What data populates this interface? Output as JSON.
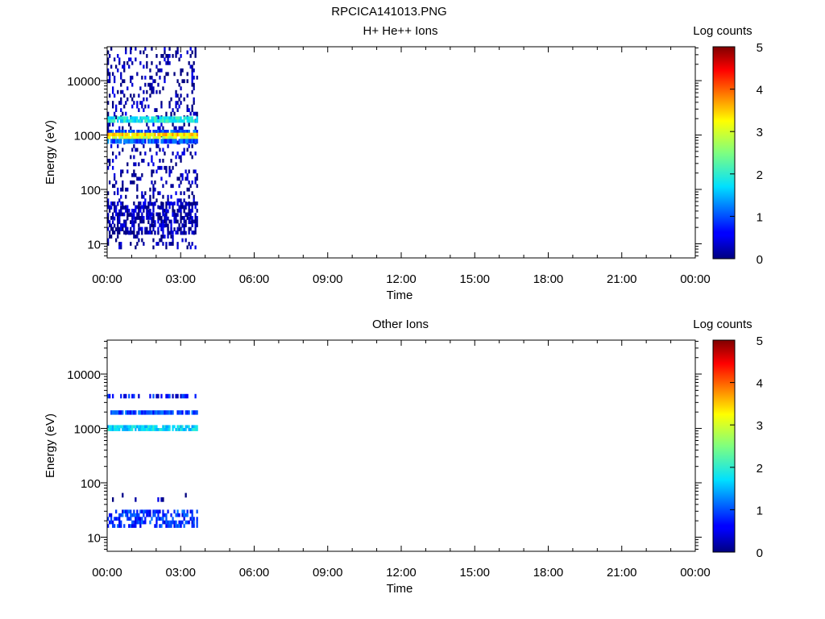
{
  "figure_title": "RPCICA141013.PNG",
  "chart_data": [
    {
      "type": "heatmap",
      "title": "H+ He++ Ions",
      "xlabel": "Time",
      "ylabel": "Energy (eV)",
      "x_ticks": [
        "00:00",
        "03:00",
        "06:00",
        "09:00",
        "12:00",
        "15:00",
        "18:00",
        "21:00",
        "00:00"
      ],
      "x_range_hours": [
        0,
        24
      ],
      "y_scale": "log",
      "y_range": [
        5.5,
        42000
      ],
      "y_ticks": [
        10,
        100,
        1000,
        10000
      ],
      "y_tick_labels": [
        "10",
        "100",
        "1000",
        "10000"
      ],
      "data_time_span_hours": [
        0.0,
        3.7
      ],
      "colorbar": {
        "label": "Log counts",
        "range": [
          0,
          5
        ],
        "ticks": [
          "0",
          "1",
          "2",
          "3",
          "4",
          "5"
        ]
      },
      "bands": [
        {
          "energy_range": [
            8,
            42000
          ],
          "log_counts": 0.1,
          "coverage": 0.2
        },
        {
          "energy_range": [
            15,
            60
          ],
          "log_counts": 0.2,
          "coverage": 0.5
        },
        {
          "energy_range": [
            1700,
            2200
          ],
          "log_counts": 1.9,
          "coverage": 0.9
        },
        {
          "energy_range": [
            1100,
            1250
          ],
          "log_counts": 1.0,
          "coverage": 0.9
        },
        {
          "energy_range": [
            950,
            1100
          ],
          "log_counts": 3.4,
          "coverage": 0.95
        },
        {
          "energy_range": [
            850,
            950
          ],
          "log_counts": 3.0,
          "coverage": 0.95
        },
        {
          "energy_range": [
            700,
            850
          ],
          "log_counts": 1.0,
          "coverage": 0.8
        }
      ]
    },
    {
      "type": "heatmap",
      "title": "Other Ions",
      "xlabel": "Time",
      "ylabel": "Energy (eV)",
      "x_ticks": [
        "00:00",
        "03:00",
        "06:00",
        "09:00",
        "12:00",
        "15:00",
        "18:00",
        "21:00",
        "00:00"
      ],
      "x_range_hours": [
        0,
        24
      ],
      "y_scale": "log",
      "y_range": [
        5.5,
        42000
      ],
      "y_ticks": [
        10,
        100,
        1000,
        10000
      ],
      "y_tick_labels": [
        "10",
        "100",
        "1000",
        "10000"
      ],
      "data_time_span_hours": [
        0.0,
        3.7
      ],
      "colorbar": {
        "label": "Log counts",
        "range": [
          0,
          5
        ],
        "ticks": [
          "0",
          "1",
          "2",
          "3",
          "4",
          "5"
        ]
      },
      "bands": [
        {
          "energy_range": [
            3600,
            4300
          ],
          "log_counts": 0.6,
          "coverage": 0.5
        },
        {
          "energy_range": [
            1800,
            2150
          ],
          "log_counts": 0.9,
          "coverage": 0.9
        },
        {
          "energy_range": [
            900,
            1150
          ],
          "log_counts": 1.7,
          "coverage": 0.9
        },
        {
          "energy_range": [
            15,
            32
          ],
          "log_counts": 0.8,
          "coverage": 0.6
        },
        {
          "energy_range": [
            45,
            65
          ],
          "log_counts": 0.1,
          "coverage": 0.05
        }
      ]
    }
  ]
}
